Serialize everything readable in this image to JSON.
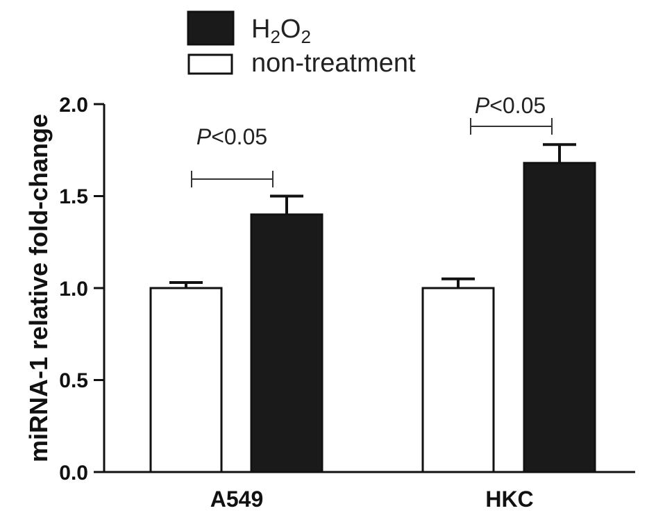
{
  "chart_data": {
    "type": "bar",
    "ylabel": "miRNA-1 relative fold-change",
    "xlabel": "",
    "ylim": [
      0,
      2.0
    ],
    "yticks": [
      "0.0",
      "0.5",
      "1.0",
      "1.5",
      "2.0"
    ],
    "grid": false,
    "legend_position": "top",
    "categories": [
      "A549",
      "HKC"
    ],
    "series": [
      {
        "name": "non-treatment",
        "color": "#ffffff",
        "values": [
          1.0,
          1.0
        ],
        "error": [
          0.03,
          0.05
        ]
      },
      {
        "name": "H2O2",
        "color": "#1a1a1a",
        "values": [
          1.4,
          1.68
        ],
        "error": [
          0.1,
          0.1
        ]
      }
    ],
    "legend": {
      "h2o2": {
        "main": "H",
        "sub1": "2",
        "mid": "O",
        "sub2": "2"
      },
      "nontreatment": "non-treatment"
    },
    "annotations": [
      {
        "category": "A549",
        "p_letter": "P",
        "p_rest": "<0.05"
      },
      {
        "category": "HKC",
        "p_letter": "P",
        "p_rest": "<0.05"
      }
    ]
  }
}
